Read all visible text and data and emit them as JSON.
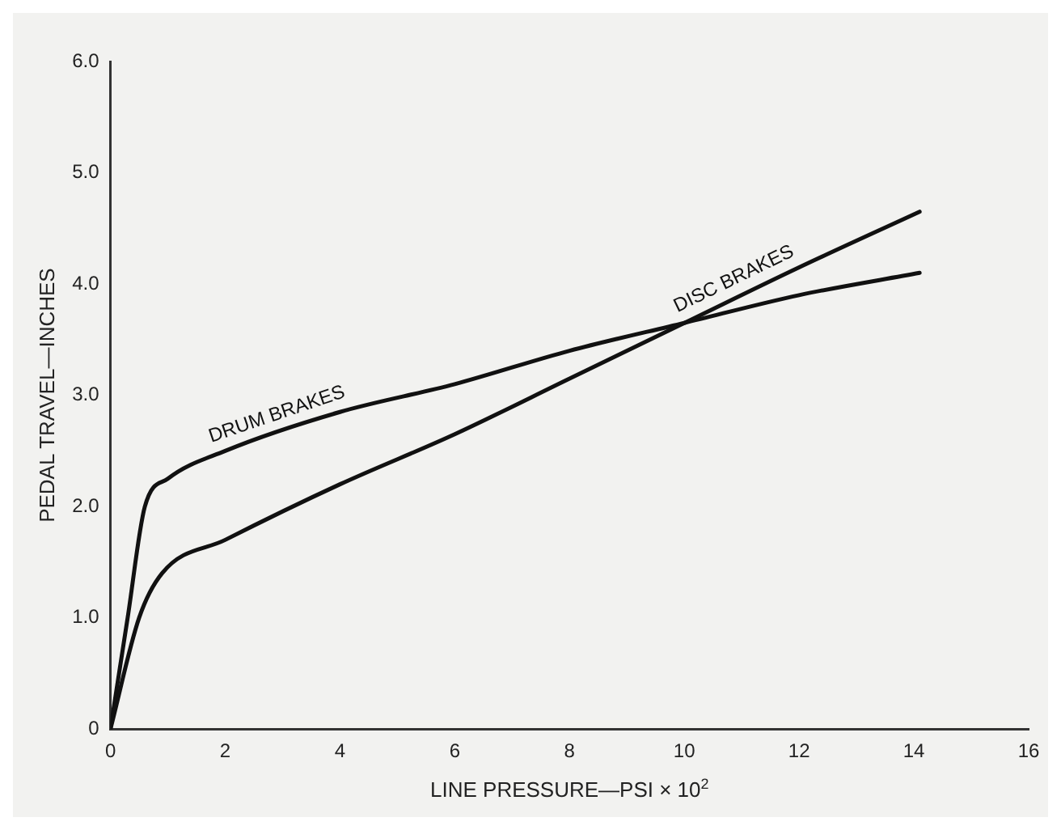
{
  "chart_data": {
    "type": "line",
    "xlabel": "LINE PRESSURE—PSI × 10$^{2}$",
    "ylabel": "PEDAL TRAVEL—INCHES",
    "xlim": [
      0,
      16
    ],
    "xticks": [
      0,
      2,
      4,
      6,
      8,
      10,
      12,
      14,
      16
    ],
    "ylim": [
      0,
      6
    ],
    "yticks": [
      0,
      {
        "value": 1,
        "label": "1.0"
      },
      {
        "value": 2,
        "label": "2.0"
      },
      {
        "value": 3,
        "label": "3.0"
      },
      {
        "value": 4,
        "label": "4.0"
      },
      {
        "value": 5,
        "label": "5.0"
      },
      {
        "value": 6,
        "label": "6.0"
      }
    ],
    "grid": false,
    "legend": false,
    "marker": "none",
    "line_style": "solid",
    "series": [
      {
        "name": "DRUM BRAKES",
        "color": "#111111",
        "x": [
          0,
          0.3,
          0.6,
          1,
          2,
          4,
          6,
          8,
          10,
          12,
          14.1
        ],
        "values": [
          0,
          1.0,
          2.0,
          2.25,
          2.5,
          2.85,
          3.1,
          3.4,
          3.65,
          3.9,
          4.1
        ]
      },
      {
        "name": "DISC BRAKES",
        "color": "#111111",
        "x": [
          0,
          0.5,
          0.9,
          2,
          4,
          6,
          8,
          10,
          12,
          14.1
        ],
        "values": [
          0,
          1.0,
          1.4,
          1.7,
          2.2,
          2.65,
          3.15,
          3.65,
          4.15,
          4.65
        ]
      }
    ]
  }
}
